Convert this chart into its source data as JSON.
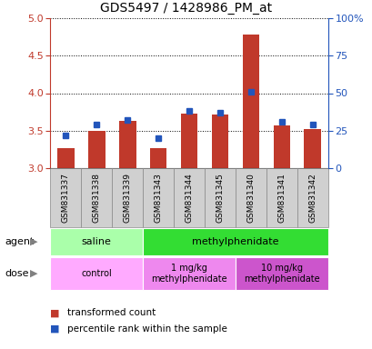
{
  "title": "GDS5497 / 1428986_PM_at",
  "samples": [
    "GSM831337",
    "GSM831338",
    "GSM831339",
    "GSM831343",
    "GSM831344",
    "GSM831345",
    "GSM831340",
    "GSM831341",
    "GSM831342"
  ],
  "transformed_count": [
    3.27,
    3.5,
    3.63,
    3.27,
    3.73,
    3.72,
    4.78,
    3.57,
    3.52
  ],
  "percentile_rank": [
    22,
    29,
    32,
    20,
    38,
    37,
    51,
    31,
    29
  ],
  "bar_bottom": 3.0,
  "ylim_left": [
    3.0,
    5.0
  ],
  "ylim_right": [
    0,
    100
  ],
  "yticks_left": [
    3.0,
    3.5,
    4.0,
    4.5,
    5.0
  ],
  "yticks_right": [
    0,
    25,
    50,
    75,
    100
  ],
  "ytick_labels_right": [
    "0",
    "25",
    "50",
    "75",
    "100%"
  ],
  "bar_color": "#c0392b",
  "dot_color": "#2255bb",
  "agent_groups": [
    {
      "label": "saline",
      "start": 0,
      "end": 3,
      "color": "#aaffaa"
    },
    {
      "label": "methylphenidate",
      "start": 3,
      "end": 9,
      "color": "#33dd33"
    }
  ],
  "dose_groups": [
    {
      "label": "control",
      "start": 0,
      "end": 3,
      "color": "#ffaaff"
    },
    {
      "label": "1 mg/kg\nmethylphenidate",
      "start": 3,
      "end": 6,
      "color": "#ee88ee"
    },
    {
      "label": "10 mg/kg\nmethylphenidate",
      "start": 6,
      "end": 9,
      "color": "#cc55cc"
    }
  ],
  "legend_items": [
    {
      "label": "transformed count",
      "color": "#c0392b"
    },
    {
      "label": "percentile rank within the sample",
      "color": "#2255bb"
    }
  ],
  "agent_label": "agent",
  "dose_label": "dose"
}
